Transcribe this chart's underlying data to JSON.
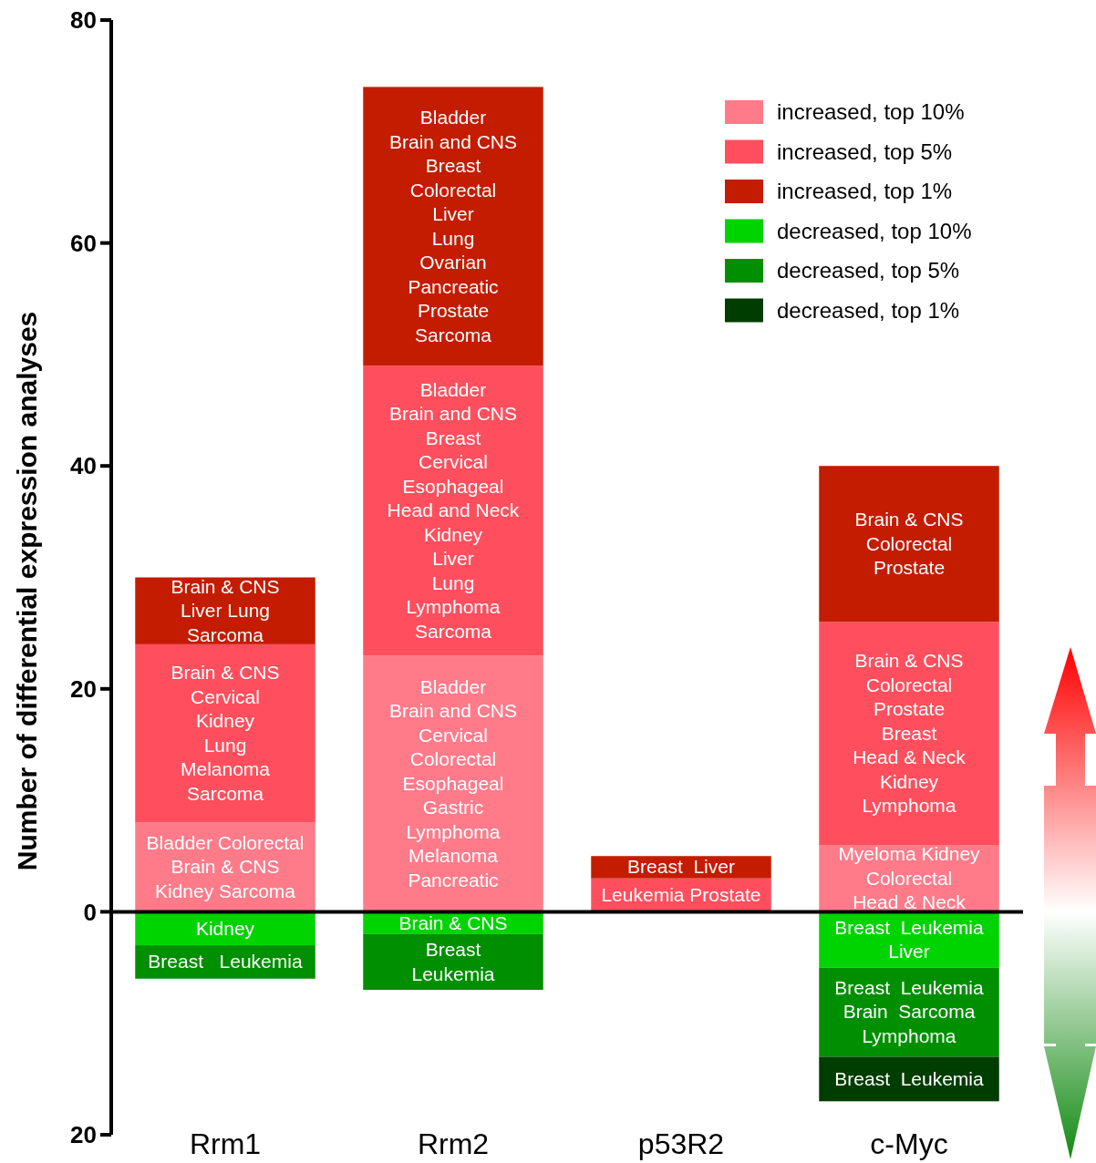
{
  "chart_data": {
    "type": "bar",
    "stacked": true,
    "ylabel": "Number of differential expression analyses",
    "categories": [
      "Rrm1",
      "Rrm2",
      "p53R2",
      "c-Myc"
    ],
    "series": [
      {
        "name": "increased, top 10%",
        "color": "#ff7b8a",
        "values": [
          8,
          23,
          0,
          6
        ],
        "value_labels": [
          "Bladder Colorectal\nBrain & CNS\nKidney Sarcoma",
          "Bladder\nBrain and CNS\nCervical\nColorectal\nEsophageal\nGastric\nLymphoma\nMelanoma\nPancreatic",
          null,
          "Myeloma Kidney\nColorectal\nHead & Neck"
        ]
      },
      {
        "name": "increased, top 5%",
        "color": "#ff4f5e",
        "values": [
          16,
          26,
          3,
          20
        ],
        "value_labels": [
          "Brain & CNS\nCervical\nKidney\nLung\nMelanoma\nSarcoma",
          "Bladder\nBrain and CNS\nBreast\nCervical\nEsophageal\nHead and Neck\nKidney\nLiver\nLung\nLymphoma\nSarcoma",
          "Leukemia Prostate",
          "Brain & CNS\nColorectal\nProstate\nBreast\nHead & Neck\nKidney\nLymphoma"
        ]
      },
      {
        "name": "increased, top 1%",
        "color": "#c41c00",
        "values": [
          6,
          25,
          2,
          14
        ],
        "value_labels": [
          "Brain & CNS\nLiver Lung\nSarcoma",
          "Bladder\nBrain and CNS\nBreast\nColorectal\nLiver\nLung\nOvarian\nPancreatic\nProstate\nSarcoma",
          "Breast  Liver",
          "Brain & CNS\nColorectal\nProstate"
        ]
      },
      {
        "name": "decreased, top 10%",
        "color": "#00d400",
        "values": [
          -3,
          -2,
          0,
          -5
        ],
        "value_labels": [
          "Kidney",
          "Brain & CNS",
          null,
          "Breast  Leukemia\nLiver"
        ]
      },
      {
        "name": "decreased, top 5%",
        "color": "#008f00",
        "values": [
          -3,
          -5,
          0,
          -8
        ],
        "value_labels": [
          "Breast   Leukemia",
          "Breast\nLeukemia",
          null,
          "Breast  Leukemia\nBrain  Sarcoma\nLymphoma"
        ]
      },
      {
        "name": "decreased, top 1%",
        "color": "#003d00",
        "values": [
          0,
          0,
          0,
          -4
        ],
        "value_labels": [
          null,
          null,
          null,
          "Breast  Leukemia"
        ]
      }
    ],
    "ylim": [
      -20,
      80
    ],
    "yticks": [
      {
        "value": -20,
        "label": "20"
      },
      0,
      20,
      40,
      60,
      80
    ],
    "legend": "top right"
  }
}
